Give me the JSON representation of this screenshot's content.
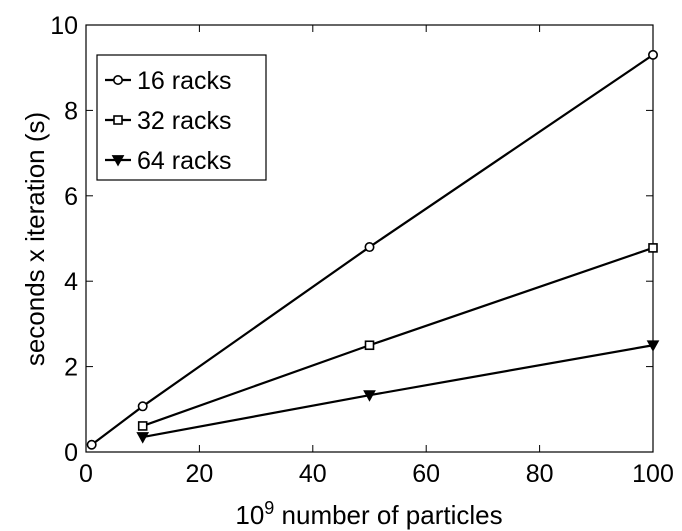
{
  "chart_data": {
    "type": "line",
    "xlabel_base": "10",
    "xlabel_exp": "9",
    "xlabel_rest": " number of particles",
    "ylabel": "seconds x iteration (s)",
    "xlim": [
      0,
      100
    ],
    "ylim": [
      0,
      10
    ],
    "xticks": [
      0,
      20,
      40,
      60,
      80,
      100
    ],
    "yticks": [
      0,
      2,
      4,
      6,
      8,
      10
    ],
    "grid": false,
    "legend_position": "top-left",
    "series": [
      {
        "name": "16 racks",
        "marker": "circle",
        "x": [
          1,
          10,
          50,
          100
        ],
        "y": [
          0.17,
          1.07,
          4.8,
          9.3
        ]
      },
      {
        "name": "32 racks",
        "marker": "square",
        "x": [
          10,
          50,
          100
        ],
        "y": [
          0.61,
          2.5,
          4.78
        ]
      },
      {
        "name": "64 racks",
        "marker": "triangle-down",
        "x": [
          10,
          50,
          100
        ],
        "y": [
          0.35,
          1.33,
          2.5
        ]
      }
    ]
  }
}
